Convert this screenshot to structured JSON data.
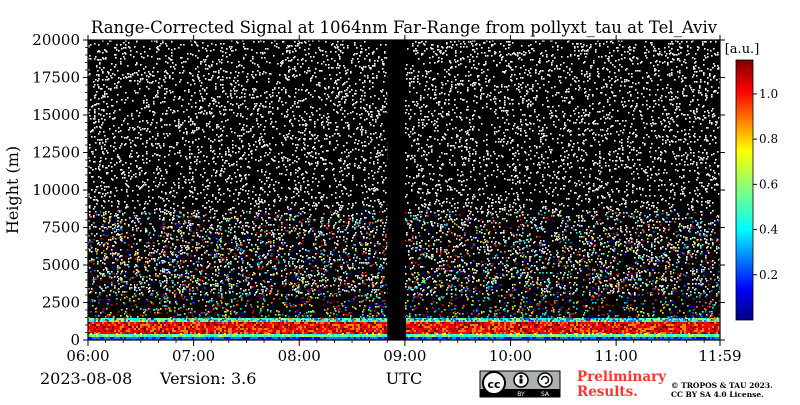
{
  "chart_data": {
    "type": "heatmap",
    "title": "Range-Corrected Signal at 1064nm Far-Range from pollyxt_tau at Tel_Aviv",
    "ylabel": "Height (m)",
    "xlabel": "UTC",
    "x_ticks": [
      "06:00",
      "07:00",
      "08:00",
      "09:00",
      "10:00",
      "11:00",
      "11:59"
    ],
    "x_range": [
      "06:00",
      "11:59"
    ],
    "y_ticks": [
      0,
      2500,
      5000,
      7500,
      10000,
      12500,
      15000,
      17500,
      20000
    ],
    "ylim": [
      0,
      20000
    ],
    "colorbar": {
      "label": "[a.u.]",
      "ticks": [
        0.2,
        0.4,
        0.6,
        0.8,
        1.0
      ],
      "range": [
        0,
        1.15
      ],
      "colormap": "jet"
    },
    "missing_data_intervals": [
      [
        "08:50",
        "09:00"
      ]
    ],
    "grid": false,
    "background_color": "#000000"
  },
  "footer": {
    "date": "2023-08-08",
    "version": "Version: 3.6",
    "license_badge": "cc-by-sa-license-badge",
    "preliminary_line1": "Preliminary",
    "preliminary_line2": "Results.",
    "copyright_line1": "© TROPOS & TAU 2023.",
    "copyright_line2": "CC BY SA 4.0 License."
  },
  "colors": {
    "preliminary": "#ff3333",
    "plot_background": "#000000"
  }
}
